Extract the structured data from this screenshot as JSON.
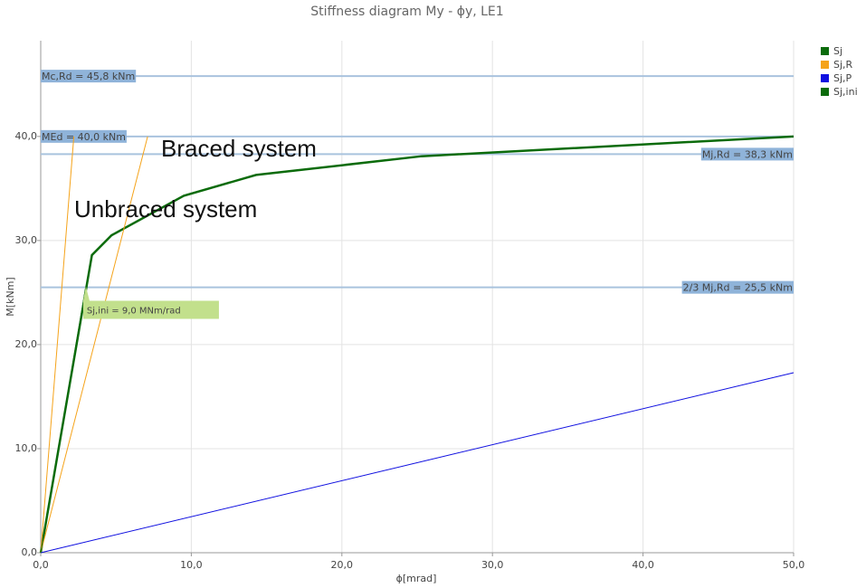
{
  "chart_data": {
    "type": "line",
    "title": "Stiffness diagram My - ϕy, LE1",
    "x_label": "ϕ[mrad]",
    "y_label": "M[kNm]",
    "xlim": [
      0,
      50
    ],
    "ylim": [
      0,
      49.2
    ],
    "xticks": [
      {
        "value": 0,
        "label": "0,0"
      },
      {
        "value": 10,
        "label": "10,0"
      },
      {
        "value": 20,
        "label": "20,0"
      },
      {
        "value": 30,
        "label": "30,0"
      },
      {
        "value": 40,
        "label": "40,0"
      },
      {
        "value": 50,
        "label": "50,0"
      }
    ],
    "yticks": [
      {
        "value": 0,
        "label": "0,0"
      },
      {
        "value": 10,
        "label": "10,0"
      },
      {
        "value": 20,
        "label": "20,0"
      },
      {
        "value": 30,
        "label": "30,0"
      },
      {
        "value": 40,
        "label": "40,0"
      }
    ],
    "grid": true,
    "series": [
      {
        "name": "Sj",
        "color": "#0b6b0b",
        "x": [
          0,
          3.4,
          4.7,
          9.5,
          14.3,
          25.3,
          50
        ],
        "values": [
          0,
          28.6,
          30.5,
          34.3,
          36.3,
          38.1,
          40
        ]
      },
      {
        "name": "Sj,R",
        "color": "#f5a31a",
        "x": [
          0,
          2.2,
          null,
          0,
          7.1
        ],
        "values": [
          0,
          40,
          null,
          0,
          40
        ]
      },
      {
        "name": "Sj,P",
        "color": "#1010e0",
        "x": [
          0,
          50
        ],
        "values": [
          0,
          17.3
        ]
      },
      {
        "name": "Sj,ini",
        "color": "#0b6b0b",
        "x": [
          0,
          3.0
        ],
        "values": [
          0,
          25.6
        ]
      }
    ],
    "ref_lines": [
      {
        "value": 45.8,
        "label": "Mc,Rd = 45,8 kNm",
        "align": "left"
      },
      {
        "value": 40.0,
        "label": "MEd = 40,0 kNm",
        "align": "left"
      },
      {
        "value": 38.3,
        "label": "Mj,Rd = 38,3 kNm",
        "align": "right"
      },
      {
        "value": 25.5,
        "label": "2/3 Mj,Rd = 25,5 kNm",
        "align": "right"
      }
    ],
    "annotations": [
      "Braced system",
      "Unbraced system"
    ],
    "tooltip": "Sj,ini = 9,0 MNm/rad",
    "legend": "top-right"
  }
}
